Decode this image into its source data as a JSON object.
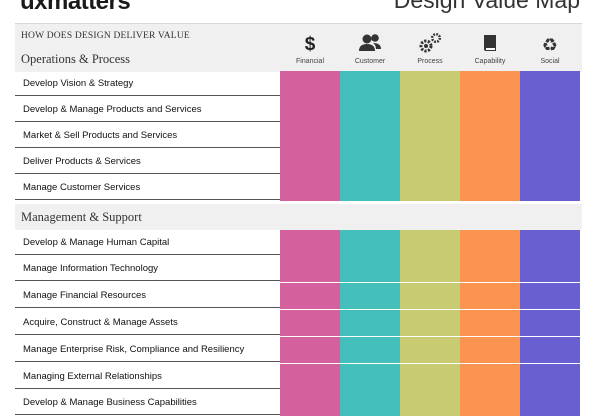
{
  "logo_text": "uxmatters",
  "map_title": "Design Value Map",
  "question": "HOW DOES DESIGN DELIVER VALUE",
  "columns": [
    {
      "label": "Financial",
      "icon": "dollar-icon",
      "color": "#d4609e"
    },
    {
      "label": "Customer",
      "icon": "users-icon",
      "color": "#45bfbc"
    },
    {
      "label": "Process",
      "icon": "gears-icon",
      "color": "#c9cb72"
    },
    {
      "label": "Capability",
      "icon": "book-icon",
      "color": "#fa9450"
    },
    {
      "label": "Social",
      "icon": "recycle-icon",
      "color": "#6a5fd1"
    }
  ],
  "sections": [
    {
      "title": "Operations & Process",
      "rows": [
        "Develop Vision & Strategy",
        "Develop & Manage Products and Services",
        "Market & Sell Products and Services",
        "Deliver Products & Services",
        "Manage Customer Services"
      ]
    },
    {
      "title": "Management & Support",
      "rows": [
        "Develop & Manage Human Capital",
        "Manage Information Technology",
        "Manage Financial Resources",
        "Acquire, Construct & Manage Assets",
        "Manage Enterprise Risk, Compliance and Resiliency",
        "Managing External Relationships",
        "Develop & Manage Business Capabilities"
      ]
    }
  ]
}
